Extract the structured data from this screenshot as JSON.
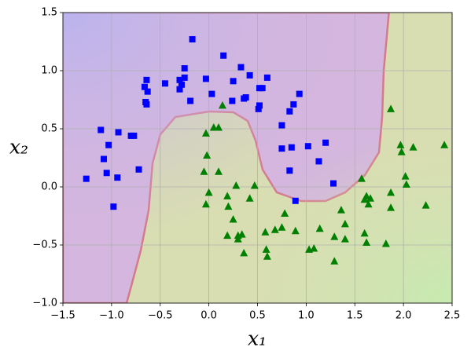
{
  "chart_data": {
    "type": "scatter",
    "xlabel": "x₁",
    "ylabel": "x₂",
    "xlim": [
      -1.5,
      2.5
    ],
    "ylim": [
      -1.0,
      1.5
    ],
    "xticks": [
      {
        "value": -1.5,
        "label": "−1.5"
      },
      {
        "value": -1.0,
        "label": "−1.0"
      },
      {
        "value": -0.5,
        "label": "−0.5"
      },
      {
        "value": 0,
        "label": "0.0"
      },
      0.5,
      {
        "value": 1,
        "label": "1.0"
      },
      1.5,
      {
        "value": 2,
        "label": "2.0"
      },
      2.5
    ],
    "yticks": [
      {
        "value": -1.0,
        "label": "−1.0"
      },
      {
        "value": -0.5,
        "label": "−0.5"
      },
      {
        "value": 0,
        "label": "0.0"
      },
      0.5,
      {
        "value": 1,
        "label": "1.0"
      },
      1.5
    ],
    "grid": true,
    "series": [
      {
        "color": "#0000ff",
        "marker": "square",
        "x": [
          -0.17,
          0.15,
          0.33,
          -0.25,
          0.42,
          0.6,
          -0.64,
          -0.45,
          -0.3,
          -0.25,
          -0.03,
          0.25,
          -0.66,
          -0.63,
          -0.28,
          -0.3,
          0.52,
          0.55,
          0.03,
          0.38,
          0.36,
          -0.65,
          -0.64,
          -0.19,
          0.24,
          0.52,
          0.51,
          0.93,
          0.87,
          0.83,
          0.75,
          -1.11,
          -0.8,
          -0.77,
          -0.93,
          -1.03,
          0.75,
          0.85,
          1.02,
          1.2,
          -1.08,
          -1.05,
          -0.94,
          -0.72,
          0.83,
          1.13,
          -1.26,
          1.28,
          0.89,
          -0.98
        ],
        "values": [
          1.27,
          1.13,
          1.03,
          1.02,
          0.96,
          0.94,
          0.92,
          0.89,
          0.92,
          0.94,
          0.93,
          0.91,
          0.86,
          0.82,
          0.88,
          0.84,
          0.85,
          0.85,
          0.8,
          0.77,
          0.76,
          0.73,
          0.71,
          0.74,
          0.74,
          0.7,
          0.67,
          0.8,
          0.71,
          0.65,
          0.53,
          0.49,
          0.44,
          0.44,
          0.47,
          0.36,
          0.33,
          0.34,
          0.35,
          0.38,
          0.24,
          0.12,
          0.08,
          0.15,
          0.14,
          0.22,
          0.07,
          0.03,
          -0.12,
          -0.17
        ]
      },
      {
        "color": "#008000",
        "marker": "triangle",
        "x": [
          0.14,
          1.87,
          0.05,
          0.1,
          -0.03,
          1.97,
          2.1,
          2.42,
          1.98,
          -0.02,
          -0.05,
          0.1,
          1.57,
          2.02,
          0.28,
          0.47,
          2.03,
          0.0,
          0.42,
          1.62,
          1.6,
          1.66,
          1.87,
          0.19,
          -0.03,
          0.2,
          1.64,
          1.87,
          2.23,
          1.36,
          0.78,
          0.25,
          1.4,
          0.68,
          0.75,
          0.58,
          0.89,
          1.14,
          1.6,
          0.3,
          0.34,
          0.19,
          0.3,
          1.29,
          1.4,
          1.62,
          1.82,
          0.59,
          1.03,
          1.08,
          0.36,
          0.6,
          1.29
        ],
        "values": [
          0.7,
          0.67,
          0.51,
          0.51,
          0.46,
          0.36,
          0.34,
          0.36,
          0.3,
          0.27,
          0.13,
          0.13,
          0.07,
          0.09,
          0.01,
          0.01,
          0.02,
          -0.05,
          -0.1,
          -0.08,
          -0.11,
          -0.1,
          -0.05,
          -0.08,
          -0.15,
          -0.17,
          -0.15,
          -0.18,
          -0.16,
          -0.2,
          -0.23,
          -0.28,
          -0.32,
          -0.37,
          -0.35,
          -0.39,
          -0.38,
          -0.36,
          -0.4,
          -0.42,
          -0.41,
          -0.42,
          -0.45,
          -0.43,
          -0.45,
          -0.48,
          -0.49,
          -0.54,
          -0.54,
          -0.53,
          -0.57,
          -0.6,
          -0.64
        ]
      }
    ]
  }
}
